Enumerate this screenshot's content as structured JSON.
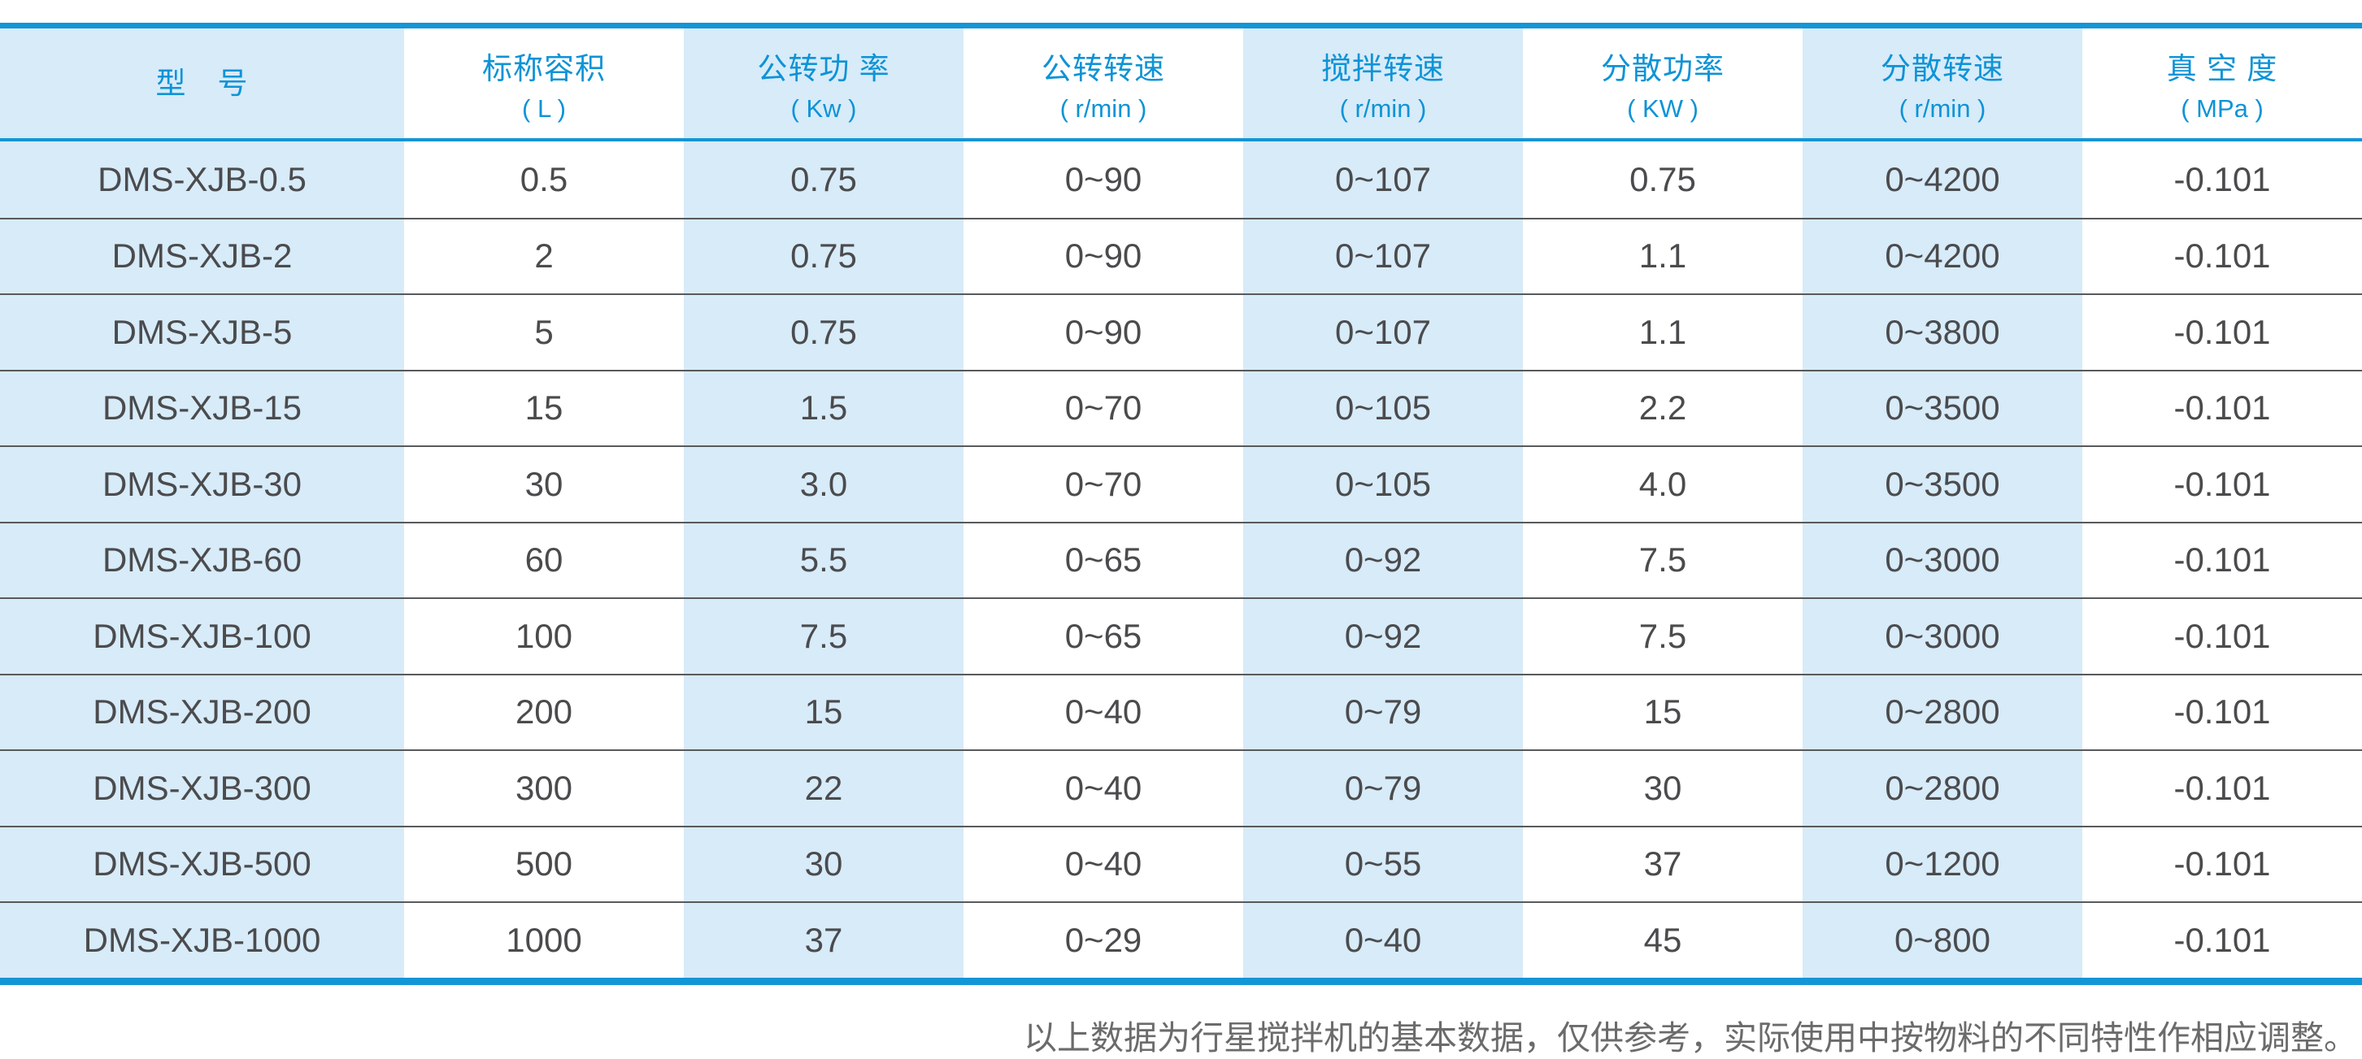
{
  "accent": {
    "line_blue": "#1495d6",
    "header_text_blue": "#0e93d6",
    "column_tint_blue": "#d7ebf9",
    "body_text": "#4b4b4d",
    "row_separator": "#58595b",
    "footnote_text": "#6b6b6b"
  },
  "table": {
    "columns": [
      {
        "title": "型　号",
        "unit": ""
      },
      {
        "title": "标称容积",
        "unit": "( L )"
      },
      {
        "title": "公转功 率",
        "unit": "( Kw )"
      },
      {
        "title": "公转转速",
        "unit": "( r/min )"
      },
      {
        "title": "搅拌转速",
        "unit": "( r/min )"
      },
      {
        "title": "分散功率",
        "unit": "( KW )"
      },
      {
        "title": "分散转速",
        "unit": "( r/min )"
      },
      {
        "title": "真 空 度",
        "unit": "( MPa )"
      }
    ],
    "rows": [
      [
        "DMS-XJB-0.5",
        "0.5",
        "0.75",
        "0~90",
        "0~107",
        "0.75",
        "0~4200",
        "-0.101"
      ],
      [
        "DMS-XJB-2",
        "2",
        "0.75",
        "0~90",
        "0~107",
        "1.1",
        "0~4200",
        "-0.101"
      ],
      [
        "DMS-XJB-5",
        "5",
        "0.75",
        "0~90",
        "0~107",
        "1.1",
        "0~3800",
        "-0.101"
      ],
      [
        "DMS-XJB-15",
        "15",
        "1.5",
        "0~70",
        "0~105",
        "2.2",
        "0~3500",
        "-0.101"
      ],
      [
        "DMS-XJB-30",
        "30",
        "3.0",
        "0~70",
        "0~105",
        "4.0",
        "0~3500",
        "-0.101"
      ],
      [
        "DMS-XJB-60",
        "60",
        "5.5",
        "0~65",
        "0~92",
        "7.5",
        "0~3000",
        "-0.101"
      ],
      [
        "DMS-XJB-100",
        "100",
        "7.5",
        "0~65",
        "0~92",
        "7.5",
        "0~3000",
        "-0.101"
      ],
      [
        "DMS-XJB-200",
        "200",
        "15",
        "0~40",
        "0~79",
        "15",
        "0~2800",
        "-0.101"
      ],
      [
        "DMS-XJB-300",
        "300",
        "22",
        "0~40",
        "0~79",
        "30",
        "0~2800",
        "-0.101"
      ],
      [
        "DMS-XJB-500",
        "500",
        "30",
        "0~40",
        "0~55",
        "37",
        "0~1200",
        "-0.101"
      ],
      [
        "DMS-XJB-1000",
        "1000",
        "37",
        "0~29",
        "0~40",
        "45",
        "0~800",
        "-0.101"
      ]
    ]
  },
  "footnote": "以上数据为行星搅拌机的基本数据，仅供参考，实际使用中按物料的不同特性作相应调整。"
}
